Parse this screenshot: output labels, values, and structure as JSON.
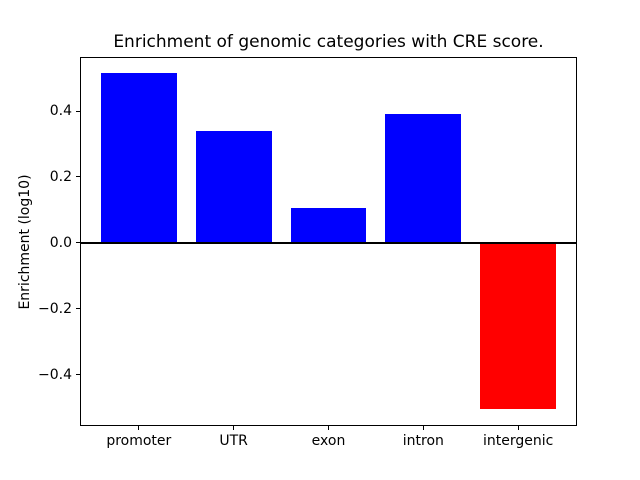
{
  "chart_data": {
    "type": "bar",
    "title": "Enrichment of genomic categories with CRE score.",
    "xlabel": "",
    "ylabel": "Enrichment (log10)",
    "categories": [
      "promoter",
      "UTR",
      "exon",
      "intron",
      "intergenic"
    ],
    "values": [
      0.515,
      0.34,
      0.105,
      0.39,
      -0.505
    ],
    "bar_colors": [
      "#0000ff",
      "#0000ff",
      "#0000ff",
      "#0000ff",
      "#ff0000"
    ],
    "positive_color": "#0000ff",
    "negative_color": "#ff0000",
    "yticks": [
      {
        "value": -0.4,
        "label": "−0.4"
      },
      {
        "value": -0.2,
        "label": "−0.2"
      },
      {
        "value": 0.0,
        "label": "0.0"
      },
      {
        "value": 0.2,
        "label": "0.2"
      },
      {
        "value": 0.4,
        "label": "0.4"
      }
    ],
    "ylim": [
      -0.556,
      0.564
    ],
    "bar_width_frac": 0.8,
    "x_edge_pad_units": 0.62,
    "grid": "off",
    "legend": "none",
    "zero_line": {
      "y": 0,
      "color": "#000000"
    },
    "frame_color": "#000000",
    "background_color": "#ffffff"
  }
}
